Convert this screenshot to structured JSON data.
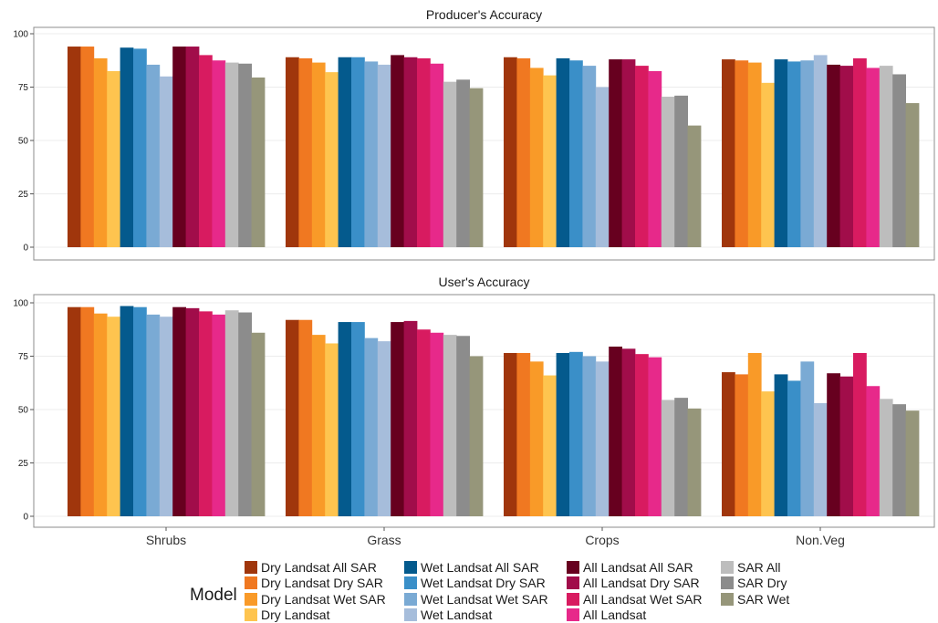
{
  "chart_data": {
    "type": "bar",
    "categories": [
      "Shrubs",
      "Grass",
      "Crops",
      "Non.Veg"
    ],
    "ylim": [
      0,
      100
    ],
    "yticks": [
      0,
      25,
      50,
      75,
      100
    ],
    "grid": true,
    "legend": {
      "title": "Model",
      "placement": "bottom",
      "columns": 4
    },
    "series": [
      {
        "name": "Dry Landsat All SAR",
        "color": "#a0360c"
      },
      {
        "name": "Dry Landsat Dry SAR",
        "color": "#f07821"
      },
      {
        "name": "Dry Landsat Wet SAR",
        "color": "#f99a28"
      },
      {
        "name": "Dry Landsat",
        "color": "#fec44f"
      },
      {
        "name": "Wet Landsat All SAR",
        "color": "#045a8d"
      },
      {
        "name": "Wet Landsat Dry SAR",
        "color": "#3a8fc8"
      },
      {
        "name": "Wet Landsat Wet SAR",
        "color": "#7aaad4"
      },
      {
        "name": "Wet Landsat",
        "color": "#a6bddb"
      },
      {
        "name": "All Landsat All SAR",
        "color": "#67001f"
      },
      {
        "name": "All Landsat Dry SAR",
        "color": "#a10d4a"
      },
      {
        "name": "All Landsat Wet SAR",
        "color": "#d81b60"
      },
      {
        "name": "All Landsat",
        "color": "#e7298a"
      },
      {
        "name": "SAR All",
        "color": "#bdbdbd"
      },
      {
        "name": "SAR Dry",
        "color": "#8c8c8c"
      },
      {
        "name": "SAR Wet",
        "color": "#96967a"
      }
    ],
    "panels": [
      {
        "title": "Producer's Accuracy",
        "values": [
          [
            94,
            94,
            88.5,
            82.5,
            93.5,
            93,
            85.5,
            80,
            94,
            94,
            90,
            87.5,
            86.5,
            86,
            79.5
          ],
          [
            89,
            88.5,
            86.5,
            82,
            89,
            89,
            87,
            85.5,
            90,
            89,
            88.5,
            86,
            77.5,
            78.5,
            74.5
          ],
          [
            89,
            88.5,
            84,
            80.5,
            88.5,
            87.5,
            85,
            75,
            88,
            88,
            85,
            82.5,
            70.5,
            71,
            57
          ],
          [
            88,
            87.5,
            86.5,
            77,
            88,
            87,
            87.5,
            90,
            85.5,
            85,
            88.5,
            84,
            85,
            81,
            67.5
          ]
        ]
      },
      {
        "title": "User's Accuracy",
        "values": [
          [
            98,
            98,
            95,
            93.5,
            98.5,
            98,
            94.5,
            93.5,
            98,
            97.5,
            96,
            94.5,
            96.5,
            95.5,
            86
          ],
          [
            92,
            92,
            85,
            81,
            91,
            91,
            83.5,
            82,
            91,
            91.5,
            87.5,
            86,
            85,
            84.5,
            75
          ],
          [
            76.5,
            76.5,
            72.5,
            66,
            76.5,
            77,
            75,
            72.5,
            79.5,
            78.5,
            76,
            74.5,
            54.5,
            55.5,
            50.5
          ],
          [
            67.5,
            66.5,
            76.5,
            58.5,
            66.5,
            63.5,
            72.5,
            53,
            67,
            65.5,
            76.5,
            61,
            55,
            52.5,
            49.5
          ]
        ]
      }
    ]
  }
}
